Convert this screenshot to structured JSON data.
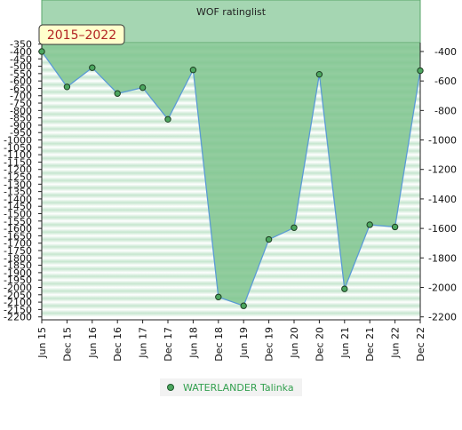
{
  "chart_data": {
    "type": "area",
    "title": "WOF ratinglist",
    "period_badge": "2015–2022",
    "x": [
      "Jun 15",
      "Dec 15",
      "Jun 16",
      "Dec 16",
      "Jun 17",
      "Dec 17",
      "Jun 18",
      "Dec 18",
      "Jun 19",
      "Dec 19",
      "Jun 20",
      "Dec 20",
      "Jun 21",
      "Dec 21",
      "Jun 22",
      "Dec 22"
    ],
    "series": [
      {
        "name": "WATERLANDER Talinka",
        "values": [
          -400,
          -640,
          -510,
          -685,
          -645,
          -860,
          -525,
          -2065,
          -2125,
          -1675,
          -1595,
          -555,
          -2010,
          -1575,
          -1590,
          -530
        ]
      }
    ],
    "left_axis": {
      "ylim": [
        -2220,
        -340
      ],
      "ticks": [
        -350,
        -400,
        -450,
        -500,
        -550,
        -600,
        -650,
        -700,
        -750,
        -800,
        -850,
        -900,
        -950,
        -1000,
        -1050,
        -1100,
        -1150,
        -1200,
        -1250,
        -1300,
        -1350,
        -1400,
        -1450,
        -1500,
        -1550,
        -1600,
        -1650,
        -1700,
        -1750,
        -1800,
        -1850,
        -1900,
        -1950,
        -2000,
        -2050,
        -2100,
        -2150,
        -2200
      ]
    },
    "right_axis": {
      "ticks": [
        -400,
        -600,
        -800,
        -1000,
        -1200,
        -1400,
        -1600,
        -1800,
        -2000,
        -2200
      ]
    },
    "grid": "horizontal bands",
    "legend_position": "bottom",
    "colors": {
      "area": "#7fc48e",
      "line": "#5b9bd5",
      "point": "#4ca65f",
      "title_box": "#a5d6b2",
      "badge_bg": "#ffffcc",
      "badge_text": "#b22222"
    }
  }
}
